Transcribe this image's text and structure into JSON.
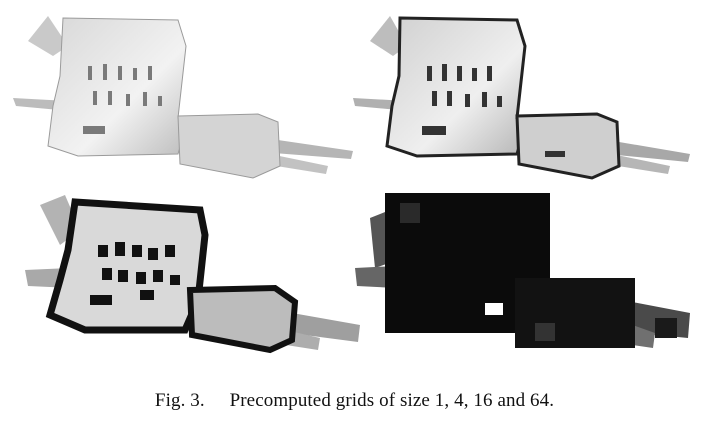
{
  "figure": {
    "caption_label": "Fig. 3.",
    "caption_text": "Precomputed grids of size 1, 4, 16 and 64.",
    "panels": [
      {
        "grid_size": 1,
        "icon": "occupancy-grid-map-fine"
      },
      {
        "grid_size": 4,
        "icon": "occupancy-grid-map-coarse-4"
      },
      {
        "grid_size": 16,
        "icon": "occupancy-grid-map-coarse-16"
      },
      {
        "grid_size": 64,
        "icon": "occupancy-grid-map-coarse-64"
      }
    ]
  }
}
